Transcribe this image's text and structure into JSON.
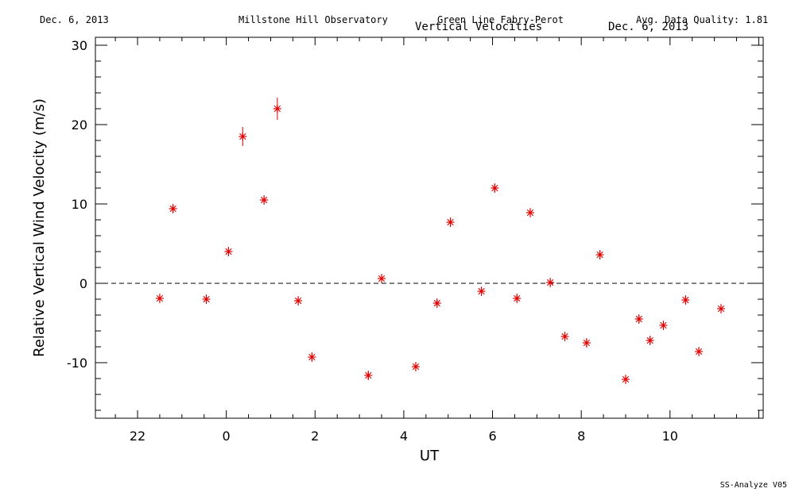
{
  "header": {
    "date_left": "Dec. 6, 2013",
    "observatory": "Millstone Hill Observatory",
    "instrument": "Green Line Fabry-Perot",
    "quality": "Avg. Data Quality: 1.81",
    "title": "Vertical Velocities",
    "date_right": "Dec. 6, 2013"
  },
  "footer": {
    "version": "SS-Analyze V05"
  },
  "colors": {
    "points": "#e00000",
    "axes": "#000000"
  },
  "chart_data": {
    "type": "scatter",
    "title": "Vertical Velocities",
    "xlabel": "UT",
    "ylabel": "Relative Vertical Wind Velocity (m/s)",
    "xlim": [
      -2.95,
      12.1
    ],
    "ylim": [
      -17,
      31
    ],
    "x_ticks": [
      22,
      0,
      2,
      4,
      6,
      8,
      10
    ],
    "y_ticks": [
      -10,
      0,
      10,
      20,
      30
    ],
    "zero_line": "dashed",
    "grid": false,
    "legend": "none",
    "x": [
      -1.5,
      -1.2,
      -0.45,
      0.05,
      0.37,
      0.85,
      1.15,
      1.62,
      1.93,
      3.2,
      3.5,
      4.27,
      4.75,
      5.05,
      5.75,
      6.05,
      6.55,
      6.85,
      7.3,
      7.63,
      8.12,
      8.42,
      9.0,
      9.3,
      9.55,
      9.85,
      10.35,
      10.65,
      11.15
    ],
    "y": [
      -1.9,
      9.4,
      -2.0,
      4.0,
      18.5,
      10.5,
      22.0,
      -2.2,
      -9.3,
      -11.6,
      0.6,
      -10.5,
      -2.5,
      7.7,
      -1.0,
      12.0,
      -1.9,
      8.9,
      0.1,
      -6.7,
      -7.5,
      3.6,
      -12.1,
      -4.5,
      -7.2,
      -5.3,
      -2.1,
      -8.6,
      -3.2
    ],
    "error": [
      0.6,
      0.6,
      0.6,
      0.6,
      1.2,
      0.6,
      1.4,
      0.6,
      0.6,
      0.6,
      0.6,
      0.6,
      0.6,
      0.6,
      0.6,
      0.6,
      0.6,
      0.6,
      0.6,
      0.6,
      0.6,
      0.6,
      0.6,
      0.6,
      0.6,
      0.6,
      0.6,
      0.6,
      0.6
    ]
  }
}
